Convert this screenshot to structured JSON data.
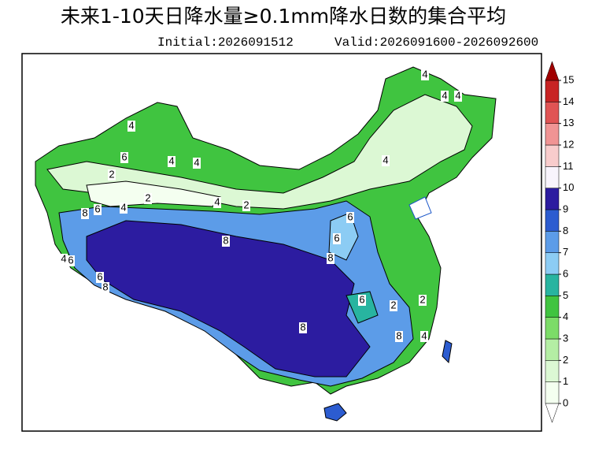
{
  "header": {
    "title": "未来1-10天日降水量≥0.1mm降水日数的集合平均",
    "initial": "Initial:2026091512",
    "valid": "Valid:2026091600-2026092600"
  },
  "colorbar": {
    "ticks": [
      0,
      1,
      2,
      3,
      4,
      5,
      6,
      7,
      8,
      9,
      10,
      11,
      12,
      13,
      14,
      15
    ],
    "colors": [
      "#f4fff0",
      "#dcf8d4",
      "#b4eea4",
      "#7cdc68",
      "#40c440",
      "#28b4a0",
      "#8cccf4",
      "#5c9ce8",
      "#2c5cd0",
      "#2c1ca0",
      "#f8f4fc",
      "#f8cccc",
      "#f09494",
      "#e05454",
      "#c82424"
    ],
    "over_color": "#a00000",
    "under_color": "#ffffff"
  },
  "contour_labels": [
    "4",
    "4",
    "4",
    "4",
    "6",
    "4",
    "4",
    "4",
    "2",
    "2",
    "8",
    "6",
    "4",
    "4",
    "2",
    "6",
    "8",
    "6",
    "8",
    "4",
    "6",
    "6",
    "8",
    "6",
    "2",
    "2",
    "8",
    "8",
    "4"
  ]
}
